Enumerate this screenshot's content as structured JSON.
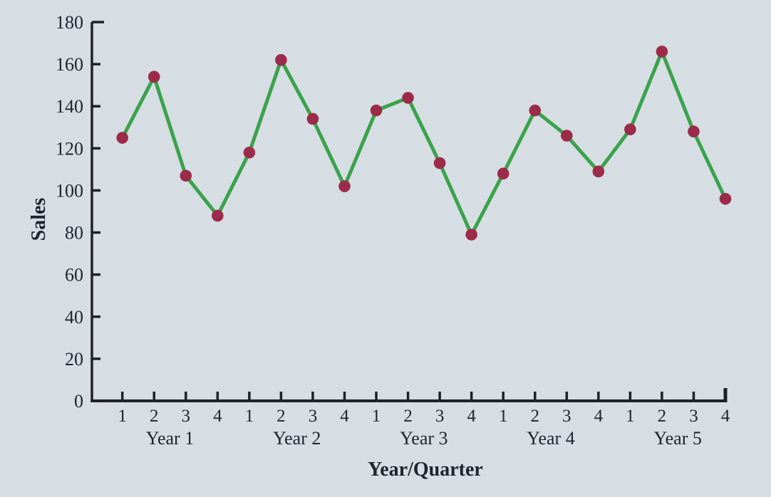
{
  "figure": {
    "background": "#d6dee3"
  },
  "chart_data": {
    "type": "line",
    "title": "",
    "ylabel": "Sales",
    "xlabel": "Year/Quarter",
    "ylim": [
      0,
      180
    ],
    "ytick_interval": 20,
    "ytick_labels": [
      "0",
      "20",
      "40",
      "60",
      "80",
      "100",
      "120",
      "140",
      "160",
      "180"
    ],
    "grid": false,
    "legend_position": "none",
    "x_structure": {
      "years": [
        "Year 1",
        "Year 2",
        "Year 3",
        "Year 4",
        "Year 5"
      ],
      "quarters": [
        "1",
        "2",
        "3",
        "4"
      ]
    },
    "series": [
      {
        "name": "Sales",
        "values": [
          125,
          154,
          107,
          88,
          118,
          162,
          134,
          102,
          138,
          144,
          113,
          79,
          108,
          138,
          126,
          109,
          129,
          166,
          128,
          96
        ]
      }
    ],
    "colors": {
      "line": "#3aa24b",
      "marker": "#9c2b4a",
      "axis": "#1e2126",
      "text": "#1f232b",
      "background": "#d6dee3"
    }
  }
}
